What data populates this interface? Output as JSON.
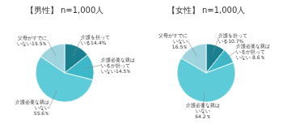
{
  "chart_data": [
    {
      "type": "pie",
      "title": "【男性】 n=1,000人",
      "values": [
        14.4,
        14.5,
        55.6,
        15.5
      ],
      "value_labels": [
        "介護を担って\nいる14.4%",
        "介護必要な親は\nいるが担って\nいない14.5％",
        "介護必要な親は\nいない\n55.6％",
        "父母がすでに\nいない15.5％"
      ],
      "colors": [
        "#1a7f8e",
        "#3db8c8",
        "#5dccd8",
        "#9ed4de"
      ],
      "data_labels": true
    },
    {
      "type": "pie",
      "title": "【女性】 n=1,000人",
      "values": [
        10.7,
        8.6,
        64.2,
        16.5
      ],
      "value_labels": [
        "介護を担って\nいる10.7%",
        "介護必要な親は\nいるが担って\nいない 8.6％",
        "介護必要な親は\nいない\n64.2％",
        "父母がすでに\nいない\n16.5％"
      ],
      "colors": [
        "#1a7f8e",
        "#3db8c8",
        "#5dccd8",
        "#9ed4de"
      ],
      "data_labels": true
    }
  ]
}
